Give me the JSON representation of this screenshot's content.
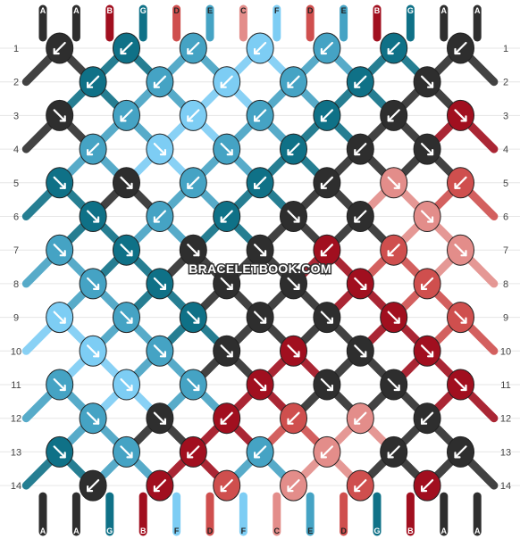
{
  "colors": {
    "A": "#2e2e2e",
    "B": "#a10f1f",
    "C": "#e38d8a",
    "D": "#cf4f4e",
    "E": "#45a3c4",
    "F": "#7dcdf4",
    "G": "#0f7187"
  },
  "strands_top": [
    "A",
    "A",
    "B",
    "G",
    "D",
    "E",
    "C",
    "F",
    "D",
    "E",
    "B",
    "G",
    "A",
    "A"
  ],
  "strands_bottom": [
    "A",
    "A",
    "G",
    "B",
    "F",
    "D",
    "F",
    "C",
    "E",
    "D",
    "G",
    "B",
    "A",
    "A"
  ],
  "row_labels": [
    "1",
    "2",
    "3",
    "4",
    "5",
    "6",
    "7",
    "8",
    "9",
    "10",
    "11",
    "12",
    "13",
    "14"
  ],
  "watermark": "BRACELETBOOK.COM",
  "knots": [
    [
      [
        "A",
        "bl"
      ],
      [
        "G",
        "bl"
      ],
      [
        "E",
        "bl"
      ],
      [
        "F",
        "bl"
      ],
      [
        "E",
        "bl"
      ],
      [
        "G",
        "bl"
      ],
      [
        "A",
        "bl"
      ]
    ],
    [
      [
        "G",
        "bl"
      ],
      [
        "E",
        "bl"
      ],
      [
        "F",
        "bl"
      ],
      [
        "E",
        "bl"
      ],
      [
        "G",
        "bl"
      ],
      [
        "A",
        "br"
      ]
    ],
    [
      [
        "A",
        "br"
      ],
      [
        "E",
        "bl"
      ],
      [
        "F",
        "bl"
      ],
      [
        "E",
        "bl"
      ],
      [
        "G",
        "bl"
      ],
      [
        "A",
        "bl"
      ],
      [
        "B",
        "br"
      ]
    ],
    [
      [
        "E",
        "bl"
      ],
      [
        "F",
        "br"
      ],
      [
        "E",
        "br"
      ],
      [
        "G",
        "bl"
      ],
      [
        "A",
        "bl"
      ],
      [
        "A",
        "br"
      ]
    ],
    [
      [
        "G",
        "br"
      ],
      [
        "A",
        "br"
      ],
      [
        "E",
        "bl"
      ],
      [
        "G",
        "bl"
      ],
      [
        "A",
        "bl"
      ],
      [
        "C",
        "br"
      ],
      [
        "D",
        "bl"
      ]
    ],
    [
      [
        "G",
        "br"
      ],
      [
        "E",
        "bl"
      ],
      [
        "G",
        "bl"
      ],
      [
        "A",
        "br"
      ],
      [
        "A",
        "bl"
      ],
      [
        "C",
        "br"
      ]
    ],
    [
      [
        "E",
        "br"
      ],
      [
        "G",
        "br"
      ],
      [
        "A",
        "br"
      ],
      [
        "A",
        "br"
      ],
      [
        "B",
        "bl"
      ],
      [
        "D",
        "bl"
      ],
      [
        "C",
        "br"
      ]
    ],
    [
      [
        "E",
        "br"
      ],
      [
        "G",
        "br"
      ],
      [
        "A",
        "br"
      ],
      [
        "A",
        "br"
      ],
      [
        "B",
        "br"
      ],
      [
        "D",
        "bl"
      ]
    ],
    [
      [
        "F",
        "br"
      ],
      [
        "E",
        "br"
      ],
      [
        "G",
        "br"
      ],
      [
        "A",
        "br"
      ],
      [
        "A",
        "br"
      ],
      [
        "B",
        "br"
      ],
      [
        "D",
        "br"
      ]
    ],
    [
      [
        "F",
        "br"
      ],
      [
        "E",
        "br"
      ],
      [
        "A",
        "br"
      ],
      [
        "B",
        "br"
      ],
      [
        "A",
        "br"
      ],
      [
        "B",
        "br"
      ]
    ],
    [
      [
        "E",
        "br"
      ],
      [
        "F",
        "br"
      ],
      [
        "E",
        "br"
      ],
      [
        "B",
        "br"
      ],
      [
        "A",
        "br"
      ],
      [
        "A",
        "br"
      ],
      [
        "B",
        "br"
      ]
    ],
    [
      [
        "E",
        "br"
      ],
      [
        "A",
        "br"
      ],
      [
        "B",
        "bl"
      ],
      [
        "D",
        "bl"
      ],
      [
        "C",
        "bl"
      ],
      [
        "A",
        "bl"
      ]
    ],
    [
      [
        "G",
        "br"
      ],
      [
        "E",
        "br"
      ],
      [
        "B",
        "bl"
      ],
      [
        "E",
        "bl"
      ],
      [
        "C",
        "bl"
      ],
      [
        "A",
        "bl"
      ],
      [
        "A",
        "bl"
      ]
    ],
    [
      [
        "A",
        "bl"
      ],
      [
        "B",
        "bl"
      ],
      [
        "D",
        "bl"
      ],
      [
        "C",
        "bl"
      ],
      [
        "D",
        "bl"
      ],
      [
        "B",
        "bl"
      ]
    ]
  ]
}
